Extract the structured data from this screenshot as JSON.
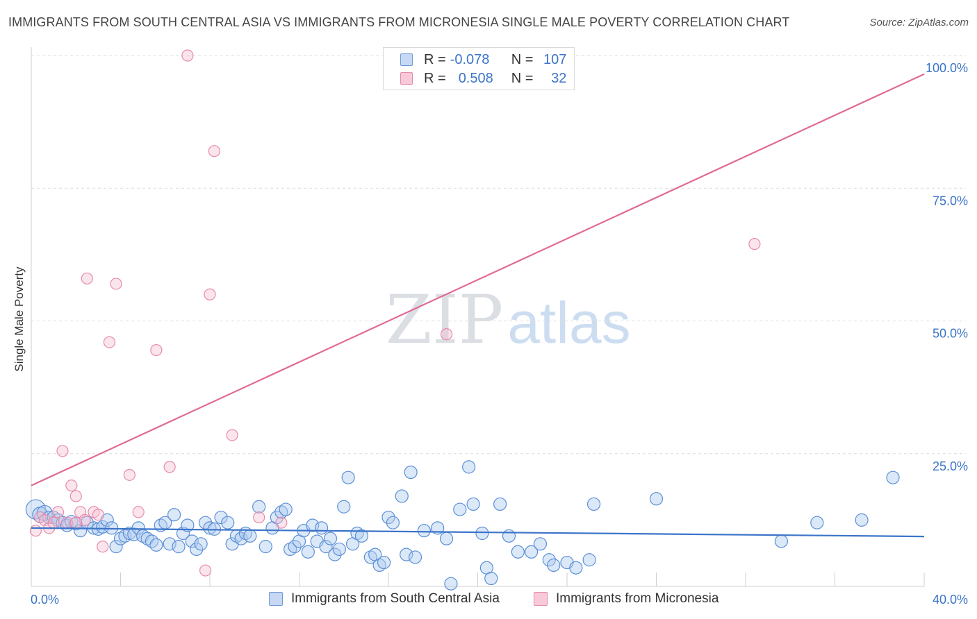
{
  "header": {
    "title": "IMMIGRANTS FROM SOUTH CENTRAL ASIA VS IMMIGRANTS FROM MICRONESIA SINGLE MALE POVERTY CORRELATION CHART",
    "source": "Source: ZipAtlas.com"
  },
  "watermark": {
    "zip": "ZIP",
    "atlas": "atlas"
  },
  "legend_top": {
    "rows": [
      {
        "r_label": "R =",
        "r_value": "-0.078",
        "n_label": "N =",
        "n_value": "107"
      },
      {
        "r_label": "R =",
        "r_value": "0.508",
        "n_label": "N =",
        "n_value": "32"
      }
    ]
  },
  "chart_data": {
    "type": "scatter",
    "title": "IMMIGRANTS FROM SOUTH CENTRAL ASIA VS IMMIGRANTS FROM MICRONESIA SINGLE MALE POVERTY CORRELATION CHART",
    "xlabel": "",
    "ylabel": "Single Male Poverty",
    "xlim": [
      0,
      40
    ],
    "ylim": [
      0,
      100
    ],
    "x_tick_labels": [
      "0.0%",
      "40.0%"
    ],
    "y_tick_labels": [
      "25.0%",
      "50.0%",
      "75.0%",
      "100.0%"
    ],
    "y_ticks": [
      25,
      50,
      75,
      100
    ],
    "grid": "horizontal dashed",
    "legend_placement": "bottom",
    "colors": {
      "south_central_asia": "#3c74c9",
      "micronesia": "#e06a94"
    },
    "series": [
      {
        "name": "Immigrants from South Central Asia",
        "color": "#3c74c9",
        "r": -0.078,
        "n": 107,
        "trend": {
          "x": [
            0,
            40
          ],
          "y": [
            11.0,
            9.4
          ]
        },
        "points": [
          [
            0.2,
            14.5
          ],
          [
            0.4,
            13.5
          ],
          [
            0.6,
            13.8
          ],
          [
            0.8,
            13.0
          ],
          [
            1.0,
            13.0
          ],
          [
            1.2,
            12.5
          ],
          [
            1.4,
            12.0
          ],
          [
            1.6,
            11.5
          ],
          [
            1.8,
            12.2
          ],
          [
            2.0,
            11.8
          ],
          [
            2.2,
            10.5
          ],
          [
            2.5,
            12.0
          ],
          [
            2.8,
            11.0
          ],
          [
            3.0,
            10.8
          ],
          [
            3.2,
            11.2
          ],
          [
            3.4,
            12.5
          ],
          [
            3.6,
            11.0
          ],
          [
            3.8,
            7.5
          ],
          [
            4.0,
            9.0
          ],
          [
            4.2,
            9.5
          ],
          [
            4.4,
            10.0
          ],
          [
            4.6,
            9.8
          ],
          [
            4.8,
            11.0
          ],
          [
            5.0,
            9.5
          ],
          [
            5.2,
            9.0
          ],
          [
            5.4,
            8.5
          ],
          [
            5.6,
            7.8
          ],
          [
            5.8,
            11.5
          ],
          [
            6.0,
            12.0
          ],
          [
            6.2,
            8.0
          ],
          [
            6.4,
            13.5
          ],
          [
            6.6,
            7.5
          ],
          [
            6.8,
            10.0
          ],
          [
            7.0,
            11.5
          ],
          [
            7.2,
            8.5
          ],
          [
            7.4,
            7.0
          ],
          [
            7.6,
            8.0
          ],
          [
            7.8,
            12.0
          ],
          [
            8.0,
            11.0
          ],
          [
            8.2,
            10.8
          ],
          [
            8.5,
            13.0
          ],
          [
            8.8,
            12.0
          ],
          [
            9.0,
            8.0
          ],
          [
            9.2,
            9.5
          ],
          [
            9.4,
            9.0
          ],
          [
            9.6,
            10.0
          ],
          [
            9.8,
            9.5
          ],
          [
            10.2,
            15.0
          ],
          [
            10.5,
            7.5
          ],
          [
            10.8,
            11.0
          ],
          [
            11.0,
            13.0
          ],
          [
            11.2,
            14.0
          ],
          [
            11.4,
            14.5
          ],
          [
            11.6,
            7.0
          ],
          [
            11.8,
            7.5
          ],
          [
            12.0,
            8.5
          ],
          [
            12.2,
            10.5
          ],
          [
            12.4,
            6.5
          ],
          [
            12.6,
            11.5
          ],
          [
            12.8,
            8.5
          ],
          [
            13.0,
            11.0
          ],
          [
            13.2,
            7.5
          ],
          [
            13.4,
            9.0
          ],
          [
            13.6,
            6.0
          ],
          [
            13.8,
            7.0
          ],
          [
            14.0,
            15.0
          ],
          [
            14.2,
            20.5
          ],
          [
            14.4,
            8.0
          ],
          [
            14.6,
            10.0
          ],
          [
            14.8,
            9.5
          ],
          [
            15.2,
            5.5
          ],
          [
            15.4,
            6.0
          ],
          [
            15.6,
            4.0
          ],
          [
            15.8,
            4.5
          ],
          [
            16.0,
            13.0
          ],
          [
            16.2,
            12.0
          ],
          [
            16.6,
            17.0
          ],
          [
            16.8,
            6.0
          ],
          [
            17.0,
            21.5
          ],
          [
            17.2,
            5.5
          ],
          [
            17.6,
            10.5
          ],
          [
            18.2,
            11.0
          ],
          [
            18.6,
            9.0
          ],
          [
            18.8,
            0.5
          ],
          [
            19.2,
            14.5
          ],
          [
            19.6,
            22.5
          ],
          [
            19.8,
            15.5
          ],
          [
            20.2,
            10.0
          ],
          [
            20.4,
            3.5
          ],
          [
            20.6,
            1.5
          ],
          [
            21.0,
            15.5
          ],
          [
            21.4,
            9.5
          ],
          [
            21.8,
            6.5
          ],
          [
            22.4,
            6.5
          ],
          [
            22.8,
            8.0
          ],
          [
            23.2,
            5.0
          ],
          [
            23.4,
            4.0
          ],
          [
            24.0,
            4.5
          ],
          [
            24.4,
            3.5
          ],
          [
            25.0,
            5.0
          ],
          [
            25.2,
            15.5
          ],
          [
            28.0,
            16.5
          ],
          [
            33.6,
            8.5
          ],
          [
            35.2,
            12.0
          ],
          [
            37.2,
            12.5
          ],
          [
            38.6,
            20.5
          ]
        ]
      },
      {
        "name": "Immigrants from Micronesia",
        "color": "#e06a94",
        "r": 0.508,
        "n": 32,
        "trend": {
          "x": [
            0,
            40
          ],
          "y": [
            19.0,
            96.5
          ]
        },
        "points": [
          [
            0.2,
            10.5
          ],
          [
            0.4,
            13.0
          ],
          [
            0.6,
            12.5
          ],
          [
            0.8,
            11.0
          ],
          [
            1.0,
            12.0
          ],
          [
            1.2,
            14.0
          ],
          [
            1.4,
            25.5
          ],
          [
            1.6,
            12.0
          ],
          [
            1.8,
            19.0
          ],
          [
            2.0,
            17.0
          ],
          [
            2.2,
            14.0
          ],
          [
            2.4,
            12.5
          ],
          [
            2.5,
            58.0
          ],
          [
            2.8,
            14.0
          ],
          [
            3.2,
            7.5
          ],
          [
            3.5,
            46.0
          ],
          [
            3.8,
            57.0
          ],
          [
            4.4,
            21.0
          ],
          [
            4.8,
            14.0
          ],
          [
            5.6,
            44.5
          ],
          [
            6.2,
            22.5
          ],
          [
            7.0,
            100.0
          ],
          [
            7.8,
            3.0
          ],
          [
            8.0,
            55.0
          ],
          [
            8.2,
            82.0
          ],
          [
            9.0,
            28.5
          ],
          [
            18.6,
            47.5
          ],
          [
            32.4,
            64.5
          ],
          [
            10.2,
            13.0
          ],
          [
            11.2,
            12.0
          ],
          [
            3.0,
            13.5
          ],
          [
            2.0,
            12.0
          ]
        ]
      }
    ]
  },
  "legend_bottom": {
    "items": [
      {
        "label": "Immigrants from South Central Asia"
      },
      {
        "label": "Immigrants from Micronesia"
      }
    ]
  }
}
